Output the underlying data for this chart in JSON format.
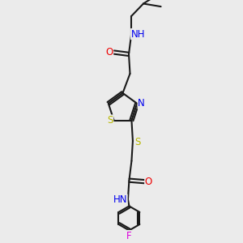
{
  "bg_color": "#ebebeb",
  "bond_color": "#1a1a1a",
  "atom_colors": {
    "S": "#b8b800",
    "N": "#0000ee",
    "O": "#ee0000",
    "F": "#dd00dd",
    "C": "#1a1a1a"
  },
  "font_size_atoms": 8.5,
  "line_width": 1.5
}
